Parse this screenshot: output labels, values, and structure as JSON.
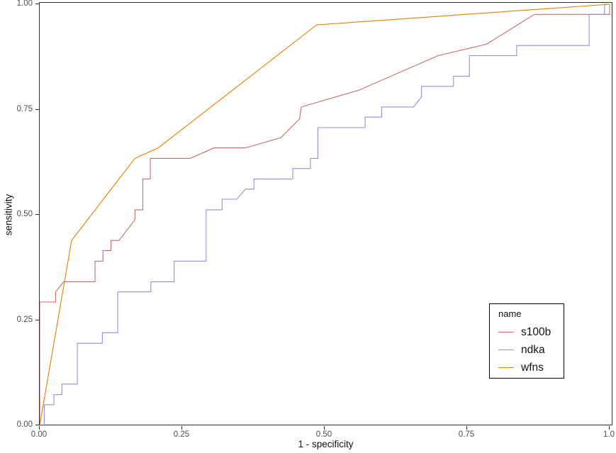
{
  "figure": {
    "background": "#ffffff",
    "panel_border_color": "#2d2d2d",
    "x_axis_title": "1 - specificity",
    "y_axis_title": "sensitivity",
    "x_tick_labels": [
      "0.00",
      "0.25",
      "0.50",
      "0.75",
      "1.0"
    ],
    "y_tick_labels": [
      "0.00",
      "0.25",
      "0.50",
      "0.75",
      "1.00"
    ],
    "tick_label_color": "#4d4d4d"
  },
  "legend": {
    "title": "name",
    "items": [
      {
        "label": "s100b",
        "color": "#C96A6A"
      },
      {
        "label": "ndka",
        "color": "#8F8FDF"
      },
      {
        "label": "wfns",
        "color": "#E67D00"
      }
    ]
  },
  "chart_data": {
    "type": "line",
    "subtype": "roc-step-curves",
    "title": "",
    "xlabel": "1 - specificity",
    "ylabel": "sensitivity",
    "xlim": [
      0,
      1
    ],
    "ylim": [
      0,
      1
    ],
    "x_tick_values": [
      0,
      0.25,
      0.5,
      0.75,
      1
    ],
    "y_tick_values": [
      0,
      0.25,
      0.5,
      0.75,
      1
    ],
    "grid": false,
    "legend_position": "inside-right-lower",
    "series": [
      {
        "name": "s100b",
        "color": "#C96A6A",
        "points": [
          [
            0,
            0
          ],
          [
            0,
            0.293
          ],
          [
            0.028,
            0.293
          ],
          [
            0.028,
            0.317
          ],
          [
            0.042,
            0.341
          ],
          [
            0.097,
            0.341
          ],
          [
            0.097,
            0.39
          ],
          [
            0.111,
            0.39
          ],
          [
            0.111,
            0.415
          ],
          [
            0.125,
            0.415
          ],
          [
            0.125,
            0.439
          ],
          [
            0.139,
            0.439
          ],
          [
            0.167,
            0.488
          ],
          [
            0.167,
            0.512
          ],
          [
            0.181,
            0.512
          ],
          [
            0.181,
            0.585
          ],
          [
            0.194,
            0.585
          ],
          [
            0.194,
            0.634
          ],
          [
            0.264,
            0.634
          ],
          [
            0.306,
            0.659
          ],
          [
            0.361,
            0.659
          ],
          [
            0.423,
            0.683
          ],
          [
            0.456,
            0.728
          ],
          [
            0.459,
            0.756
          ],
          [
            0.56,
            0.796
          ],
          [
            0.699,
            0.878
          ],
          [
            0.784,
            0.905
          ],
          [
            0.868,
            0.976
          ],
          [
            1,
            0.976
          ],
          [
            1,
            1
          ]
        ]
      },
      {
        "name": "ndka",
        "color": "#8F8FDF",
        "points": [
          [
            0,
            0
          ],
          [
            0.008,
            0
          ],
          [
            0.008,
            0.049
          ],
          [
            0.025,
            0.049
          ],
          [
            0.025,
            0.073
          ],
          [
            0.039,
            0.073
          ],
          [
            0.039,
            0.098
          ],
          [
            0.066,
            0.098
          ],
          [
            0.066,
            0.195
          ],
          [
            0.11,
            0.195
          ],
          [
            0.11,
            0.22
          ],
          [
            0.137,
            0.22
          ],
          [
            0.137,
            0.317
          ],
          [
            0.195,
            0.317
          ],
          [
            0.195,
            0.341
          ],
          [
            0.236,
            0.341
          ],
          [
            0.236,
            0.39
          ],
          [
            0.292,
            0.39
          ],
          [
            0.292,
            0.512
          ],
          [
            0.32,
            0.512
          ],
          [
            0.32,
            0.537
          ],
          [
            0.346,
            0.537
          ],
          [
            0.361,
            0.561
          ],
          [
            0.376,
            0.561
          ],
          [
            0.376,
            0.585
          ],
          [
            0.444,
            0.585
          ],
          [
            0.444,
            0.61
          ],
          [
            0.475,
            0.61
          ],
          [
            0.475,
            0.634
          ],
          [
            0.488,
            0.634
          ],
          [
            0.488,
            0.707
          ],
          [
            0.571,
            0.707
          ],
          [
            0.571,
            0.732
          ],
          [
            0.6,
            0.732
          ],
          [
            0.6,
            0.756
          ],
          [
            0.656,
            0.756
          ],
          [
            0.67,
            0.78
          ],
          [
            0.67,
            0.805
          ],
          [
            0.726,
            0.805
          ],
          [
            0.726,
            0.829
          ],
          [
            0.754,
            0.829
          ],
          [
            0.754,
            0.878
          ],
          [
            0.837,
            0.878
          ],
          [
            0.837,
            0.902
          ],
          [
            0.964,
            0.902
          ],
          [
            0.964,
            0.976
          ],
          [
            0.991,
            0.976
          ],
          [
            0.991,
            1
          ],
          [
            1,
            1
          ]
        ]
      },
      {
        "name": "wfns",
        "color": "#E67D00",
        "points": [
          [
            0,
            0
          ],
          [
            0.056,
            0.439
          ],
          [
            0.167,
            0.634
          ],
          [
            0.208,
            0.659
          ],
          [
            0.486,
            0.951
          ],
          [
            1,
            1
          ]
        ]
      }
    ]
  }
}
